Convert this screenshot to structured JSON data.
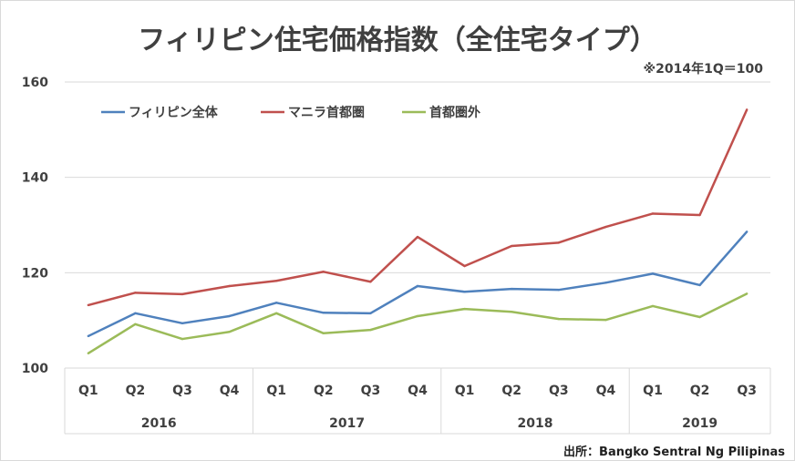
{
  "chart_data": {
    "type": "line",
    "title": "フィリピン住宅価格指数（全住宅タイプ）",
    "note": "※2014年1Q＝100",
    "source": "出所：Bangko Sentral Ng Pilipinas",
    "quarters": [
      "Q1",
      "Q2",
      "Q3",
      "Q4",
      "Q1",
      "Q2",
      "Q3",
      "Q4",
      "Q1",
      "Q2",
      "Q3",
      "Q4",
      "Q1",
      "Q2",
      "Q3"
    ],
    "years": [
      {
        "label": "2016",
        "count": 4
      },
      {
        "label": "2017",
        "count": 4
      },
      {
        "label": "2018",
        "count": 4
      },
      {
        "label": "2019",
        "count": 3
      }
    ],
    "ylim": [
      100,
      160
    ],
    "yticks": [
      100,
      120,
      140,
      160
    ],
    "grid": true,
    "legend_position": "top-left",
    "series": [
      {
        "name": "フィリピン全体",
        "color": "#4f81bd",
        "values": [
          106.7,
          111.5,
          109.4,
          110.9,
          113.7,
          111.6,
          111.5,
          117.2,
          116.0,
          116.6,
          116.4,
          117.9,
          119.8,
          117.4,
          128.6
        ]
      },
      {
        "name": "マニラ首都圏",
        "color": "#c0504d",
        "values": [
          113.2,
          115.8,
          115.5,
          117.2,
          118.3,
          120.2,
          118.1,
          127.5,
          121.4,
          125.6,
          126.3,
          129.6,
          132.4,
          132.1,
          154.2
        ]
      },
      {
        "name": "首都圏外",
        "color": "#9bbb59",
        "values": [
          103.1,
          109.2,
          106.1,
          107.6,
          111.5,
          107.3,
          108.0,
          110.9,
          112.4,
          111.8,
          110.3,
          110.1,
          113.0,
          110.7,
          115.6
        ]
      }
    ]
  }
}
